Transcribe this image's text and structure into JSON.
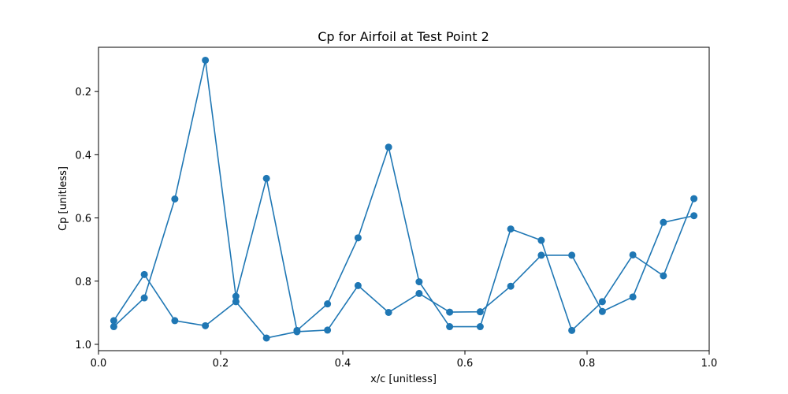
{
  "chart_data": {
    "type": "line",
    "title": "Cp for Airfoil at Test Point 2",
    "xlabel": "x/c [unitless]",
    "ylabel": "Cp [unitless]",
    "xlim": [
      0.0,
      1.0
    ],
    "ylim": [
      1.02,
      0.06
    ],
    "y_inverted": true,
    "grid": false,
    "line_color": "#1f77b4",
    "marker": "circle",
    "x_ticks": [
      0.0,
      0.2,
      0.4,
      0.6,
      0.8,
      1.0
    ],
    "x_tick_labels": [
      "0.0",
      "0.2",
      "0.4",
      "0.6",
      "0.8",
      "1.0"
    ],
    "y_ticks": [
      0.2,
      0.4,
      0.6,
      0.8,
      1.0
    ],
    "y_tick_labels": [
      "0.2",
      "0.4",
      "0.6",
      "0.8",
      "1.0"
    ],
    "series": [
      {
        "x": [
          0.025,
          0.075,
          0.125,
          0.175,
          0.225,
          0.275,
          0.325,
          0.375,
          0.425,
          0.475,
          0.525,
          0.575,
          0.625,
          0.675,
          0.725,
          0.775,
          0.825,
          0.875,
          0.925,
          0.975
        ],
        "values": [
          0.944,
          0.853,
          0.54,
          0.101,
          0.848,
          0.475,
          0.956,
          0.872,
          0.663,
          0.376,
          0.802,
          0.944,
          0.944,
          0.635,
          0.671,
          0.956,
          0.865,
          0.717,
          0.783,
          0.539
        ]
      },
      {
        "x": [
          0.025,
          0.075,
          0.125,
          0.175,
          0.225,
          0.275,
          0.325,
          0.375,
          0.425,
          0.475,
          0.525,
          0.575,
          0.625,
          0.675,
          0.725,
          0.775,
          0.825,
          0.875,
          0.925,
          0.975
        ],
        "values": [
          0.925,
          0.779,
          0.925,
          0.941,
          0.865,
          0.98,
          0.96,
          0.955,
          0.814,
          0.899,
          0.839,
          0.898,
          0.897,
          0.816,
          0.718,
          0.718,
          0.896,
          0.85,
          0.614,
          0.593
        ]
      }
    ]
  }
}
